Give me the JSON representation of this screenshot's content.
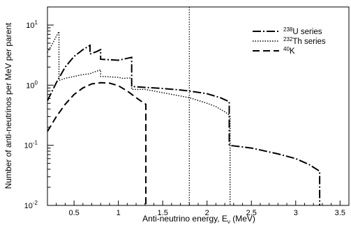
{
  "chart_data": {
    "type": "line",
    "title": "",
    "xlabel_prefix": "Anti-neutrino energy, E",
    "xlabel_sub": "ν",
    "xlabel_suffix": " (MeV)",
    "ylabel": "Number of anti-neutrinos per MeV per parent",
    "xlim": [
      0.2,
      3.6
    ],
    "ylim": [
      0.01,
      20
    ],
    "yscale": "log",
    "grid": false,
    "legend_position": "top-right",
    "x_ticks": [
      {
        "value": 0.5,
        "label": "0.5"
      },
      {
        "value": 1.0,
        "label": "1"
      },
      {
        "value": 1.5,
        "label": "1.5"
      },
      {
        "value": 2.0,
        "label": "2"
      },
      {
        "value": 2.5,
        "label": "2.5"
      },
      {
        "value": 3.0,
        "label": "3"
      },
      {
        "value": 3.5,
        "label": "3.5"
      }
    ],
    "y_ticks": [
      {
        "value": 0.01,
        "base": "10",
        "exp": "-2"
      },
      {
        "value": 0.1,
        "base": "10",
        "exp": "-1"
      },
      {
        "value": 1,
        "base": "10",
        "exp": "0"
      },
      {
        "value": 10,
        "base": "10",
        "exp": "1"
      }
    ],
    "threshold_line": {
      "x": 1.8
    },
    "series": [
      {
        "sup": "238",
        "name": "U series",
        "style": "dashdot",
        "x": [
          0.2,
          0.3,
          0.4,
          0.5,
          0.6,
          0.68,
          0.68,
          0.75,
          0.8,
          0.8,
          1.0,
          1.15,
          1.15,
          1.3,
          1.5,
          1.7,
          1.8,
          2.0,
          2.15,
          2.25,
          2.25,
          2.5,
          2.8,
          3.0,
          3.15,
          3.27,
          3.27
        ],
        "y": [
          0.55,
          1.1,
          2.0,
          3.0,
          3.9,
          4.6,
          3.3,
          3.6,
          3.9,
          2.7,
          2.6,
          2.9,
          0.95,
          0.92,
          0.88,
          0.83,
          0.8,
          0.72,
          0.62,
          0.53,
          0.1,
          0.09,
          0.072,
          0.06,
          0.048,
          0.037,
          0.01
        ]
      },
      {
        "sup": "232",
        "name": "Th series",
        "style": "dotted",
        "x": [
          0.2,
          0.26,
          0.3,
          0.33,
          0.33,
          0.4,
          0.6,
          0.68,
          0.7,
          0.8,
          0.8,
          1.0,
          1.05,
          1.15,
          1.15,
          1.3,
          1.5,
          1.7,
          1.8,
          2.0,
          2.1,
          2.2,
          2.25,
          2.26,
          2.26
        ],
        "y": [
          3.5,
          5.0,
          6.5,
          7.8,
          1.2,
          1.3,
          1.5,
          1.55,
          1.6,
          1.8,
          1.4,
          1.35,
          1.3,
          1.32,
          0.85,
          0.85,
          0.75,
          0.66,
          0.62,
          0.5,
          0.44,
          0.36,
          0.32,
          0.3,
          0.01
        ]
      },
      {
        "sup": "40",
        "name": "K",
        "style": "dashed",
        "x": [
          0.2,
          0.3,
          0.4,
          0.5,
          0.6,
          0.7,
          0.8,
          0.9,
          1.0,
          1.1,
          1.2,
          1.25,
          1.31,
          1.31
        ],
        "y": [
          0.17,
          0.3,
          0.48,
          0.7,
          0.9,
          1.05,
          1.1,
          1.08,
          0.98,
          0.8,
          0.62,
          0.55,
          0.48,
          0.01
        ]
      }
    ]
  }
}
